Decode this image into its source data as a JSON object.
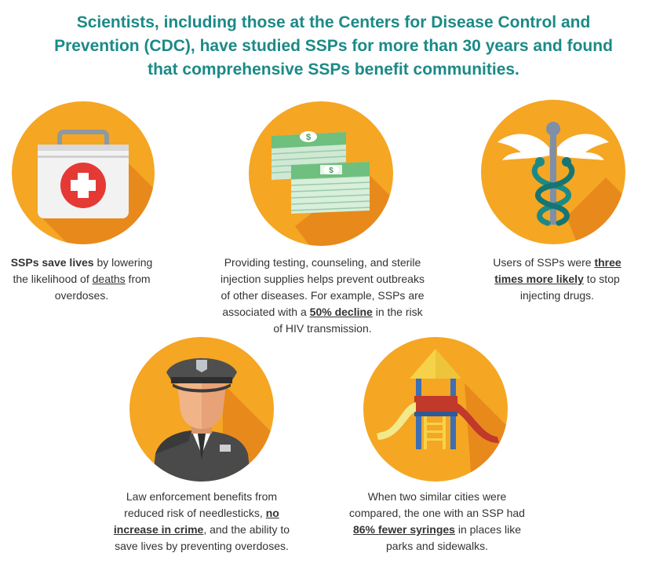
{
  "title": {
    "line1": "Scientists, including those at the Centers for Disease Control and",
    "line2": "Prevention (CDC), have studied SSPs for more than 30 years and found",
    "line3": "that comprehensive SSPs benefit communities."
  },
  "colors": {
    "title": "#1b8a87",
    "circle_orange": "#f5a623",
    "circle_shadow": "#e8891c",
    "text": "#333333"
  },
  "cards": {
    "lives": {
      "icon": "first-aid-kit-icon",
      "l1_bold": "SSPs save lives",
      "l1_rest": " by lowering",
      "l2_pre": "the likelihood of ",
      "l2_u": "deaths",
      "l2_post": " from",
      "l3": "overdoses."
    },
    "money": {
      "icon": "money-stack-icon",
      "l1": "Providing testing, counseling, and sterile",
      "l2": "injection supplies helps prevent outbreaks",
      "l3": "of other diseases. For example, SSPs are",
      "l4_pre": "associated with a ",
      "l4_bold": "50% decline",
      "l4_post": " in the risk",
      "l5": "of HIV transmission."
    },
    "caduceus": {
      "icon": "caduceus-icon",
      "l1_pre": "Users of SSPs were ",
      "l1_bold": "three",
      "l2_bold": "times more likely",
      "l2_post": " to stop",
      "l3": "injecting drugs."
    },
    "police": {
      "icon": "police-officer-icon",
      "l1": "Law enforcement benefits from",
      "l2_pre": "reduced risk of needlesticks, ",
      "l2_bold": "no",
      "l3_bold": "increase in crime",
      "l3_post": ", and the ability to",
      "l4": "save lives by preventing overdoses."
    },
    "playground": {
      "icon": "playground-icon",
      "l1": "When two similar cities were",
      "l2": "compared, the one with an SSP had",
      "l3_bold": "86% fewer syringes",
      "l3_post": " in places like",
      "l4": "parks and sidewalks."
    }
  }
}
